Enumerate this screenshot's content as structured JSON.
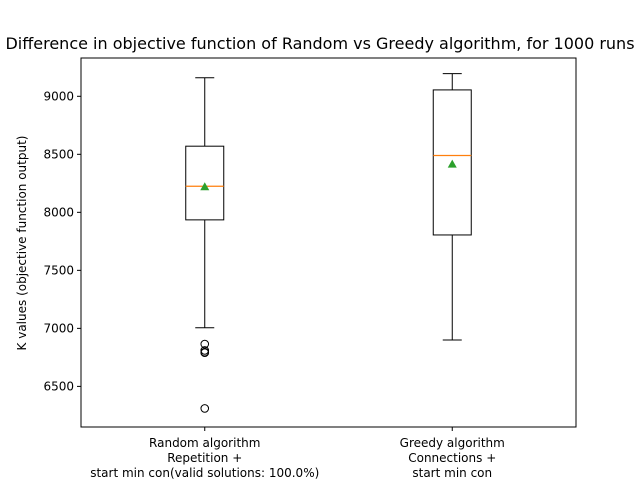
{
  "chart_data": {
    "type": "box",
    "title": "Difference in objective function of Random vs Greedy algorithm, for 1000 runs",
    "xlabel": "",
    "ylabel": "K values (objective function output)",
    "ylim": [
      6150,
      9330
    ],
    "yticks": [
      6500,
      7000,
      7500,
      8000,
      8500,
      9000
    ],
    "grid": false,
    "categories": [
      [
        "Random algorithm",
        "Repetition +",
        "start min con(valid solutions: 100.0%)"
      ],
      [
        "Greedy algorithm",
        "Connections +",
        "start min con"
      ]
    ],
    "boxes": [
      {
        "whisker_low": 7005,
        "q1": 7935,
        "median": 8225,
        "q3": 8570,
        "whisker_high": 9160,
        "mean": 8220,
        "outliers": [
          6865,
          6810,
          6795,
          6790,
          6310
        ]
      },
      {
        "whisker_low": 6900,
        "q1": 7805,
        "median": 8490,
        "q3": 9055,
        "whisker_high": 9195,
        "mean": 8415,
        "outliers": []
      }
    ],
    "colors": {
      "box": "#000000",
      "median": "#ff7f0e",
      "mean": "#2ca02c",
      "outlier": "#000000"
    }
  }
}
